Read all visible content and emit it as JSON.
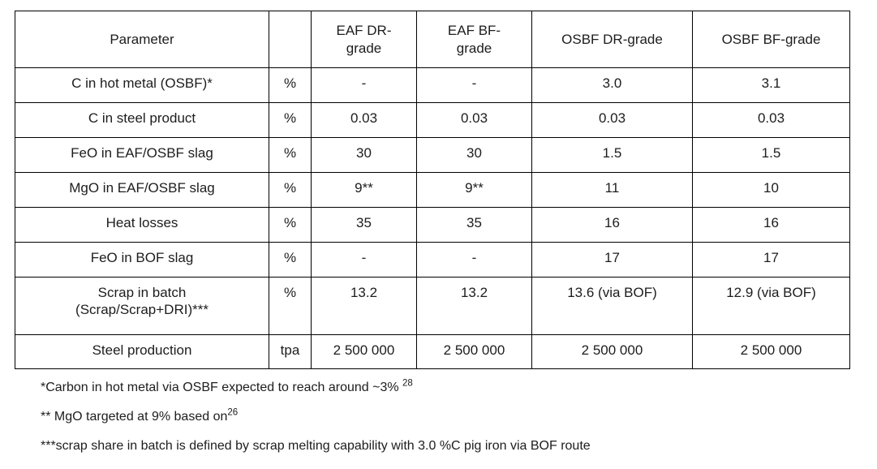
{
  "page": {
    "background_color": "#ffffff",
    "text_color": "#1d1d1d",
    "border_color": "#000000"
  },
  "table": {
    "headers": [
      {
        "label": "Parameter"
      },
      {
        "label": ""
      },
      {
        "label": "EAF DR-\ngrade"
      },
      {
        "label": "EAF BF-\ngrade"
      },
      {
        "label": "OSBF DR-grade"
      },
      {
        "label": "OSBF BF-grade"
      }
    ],
    "rows": [
      {
        "parameter": "C in hot metal (OSBF)*",
        "unit": "%",
        "values": [
          "-",
          "-",
          "3.0",
          "3.1"
        ]
      },
      {
        "parameter": "C in steel product",
        "unit": "%",
        "values": [
          "0.03",
          "0.03",
          "0.03",
          "0.03"
        ]
      },
      {
        "parameter": "FeO in EAF/OSBF slag",
        "unit": "%",
        "values": [
          "30",
          "30",
          "1.5",
          "1.5"
        ]
      },
      {
        "parameter": "MgO in EAF/OSBF slag",
        "unit": "%",
        "values": [
          "9**",
          "9**",
          "11",
          "10"
        ]
      },
      {
        "parameter": "Heat losses",
        "unit": "%",
        "values": [
          "35",
          "35",
          "16",
          "16"
        ]
      },
      {
        "parameter": "FeO in BOF slag",
        "unit": "%",
        "values": [
          "-",
          "-",
          "17",
          "17"
        ]
      },
      {
        "parameter": "Scrap in batch\n(Scrap/Scrap+DRI)***",
        "unit": "%",
        "values": [
          "13.2",
          "13.2",
          "13.6 (via BOF)",
          "12.9 (via BOF)"
        ]
      },
      {
        "parameter": "Steel production",
        "unit": "tpa",
        "values": [
          "2 500 000",
          "2 500 000",
          "2 500 000",
          "2 500 000"
        ]
      }
    ]
  },
  "footnotes": [
    {
      "text": "*Carbon in hot metal via OSBF expected to reach around ~3% ",
      "sup": "28"
    },
    {
      "text": "** MgO targeted at 9% based on",
      "sup": "26"
    },
    {
      "text": "***scrap share in batch is defined by scrap melting capability with 3.0 %C pig iron via BOF route",
      "sup": ""
    }
  ]
}
